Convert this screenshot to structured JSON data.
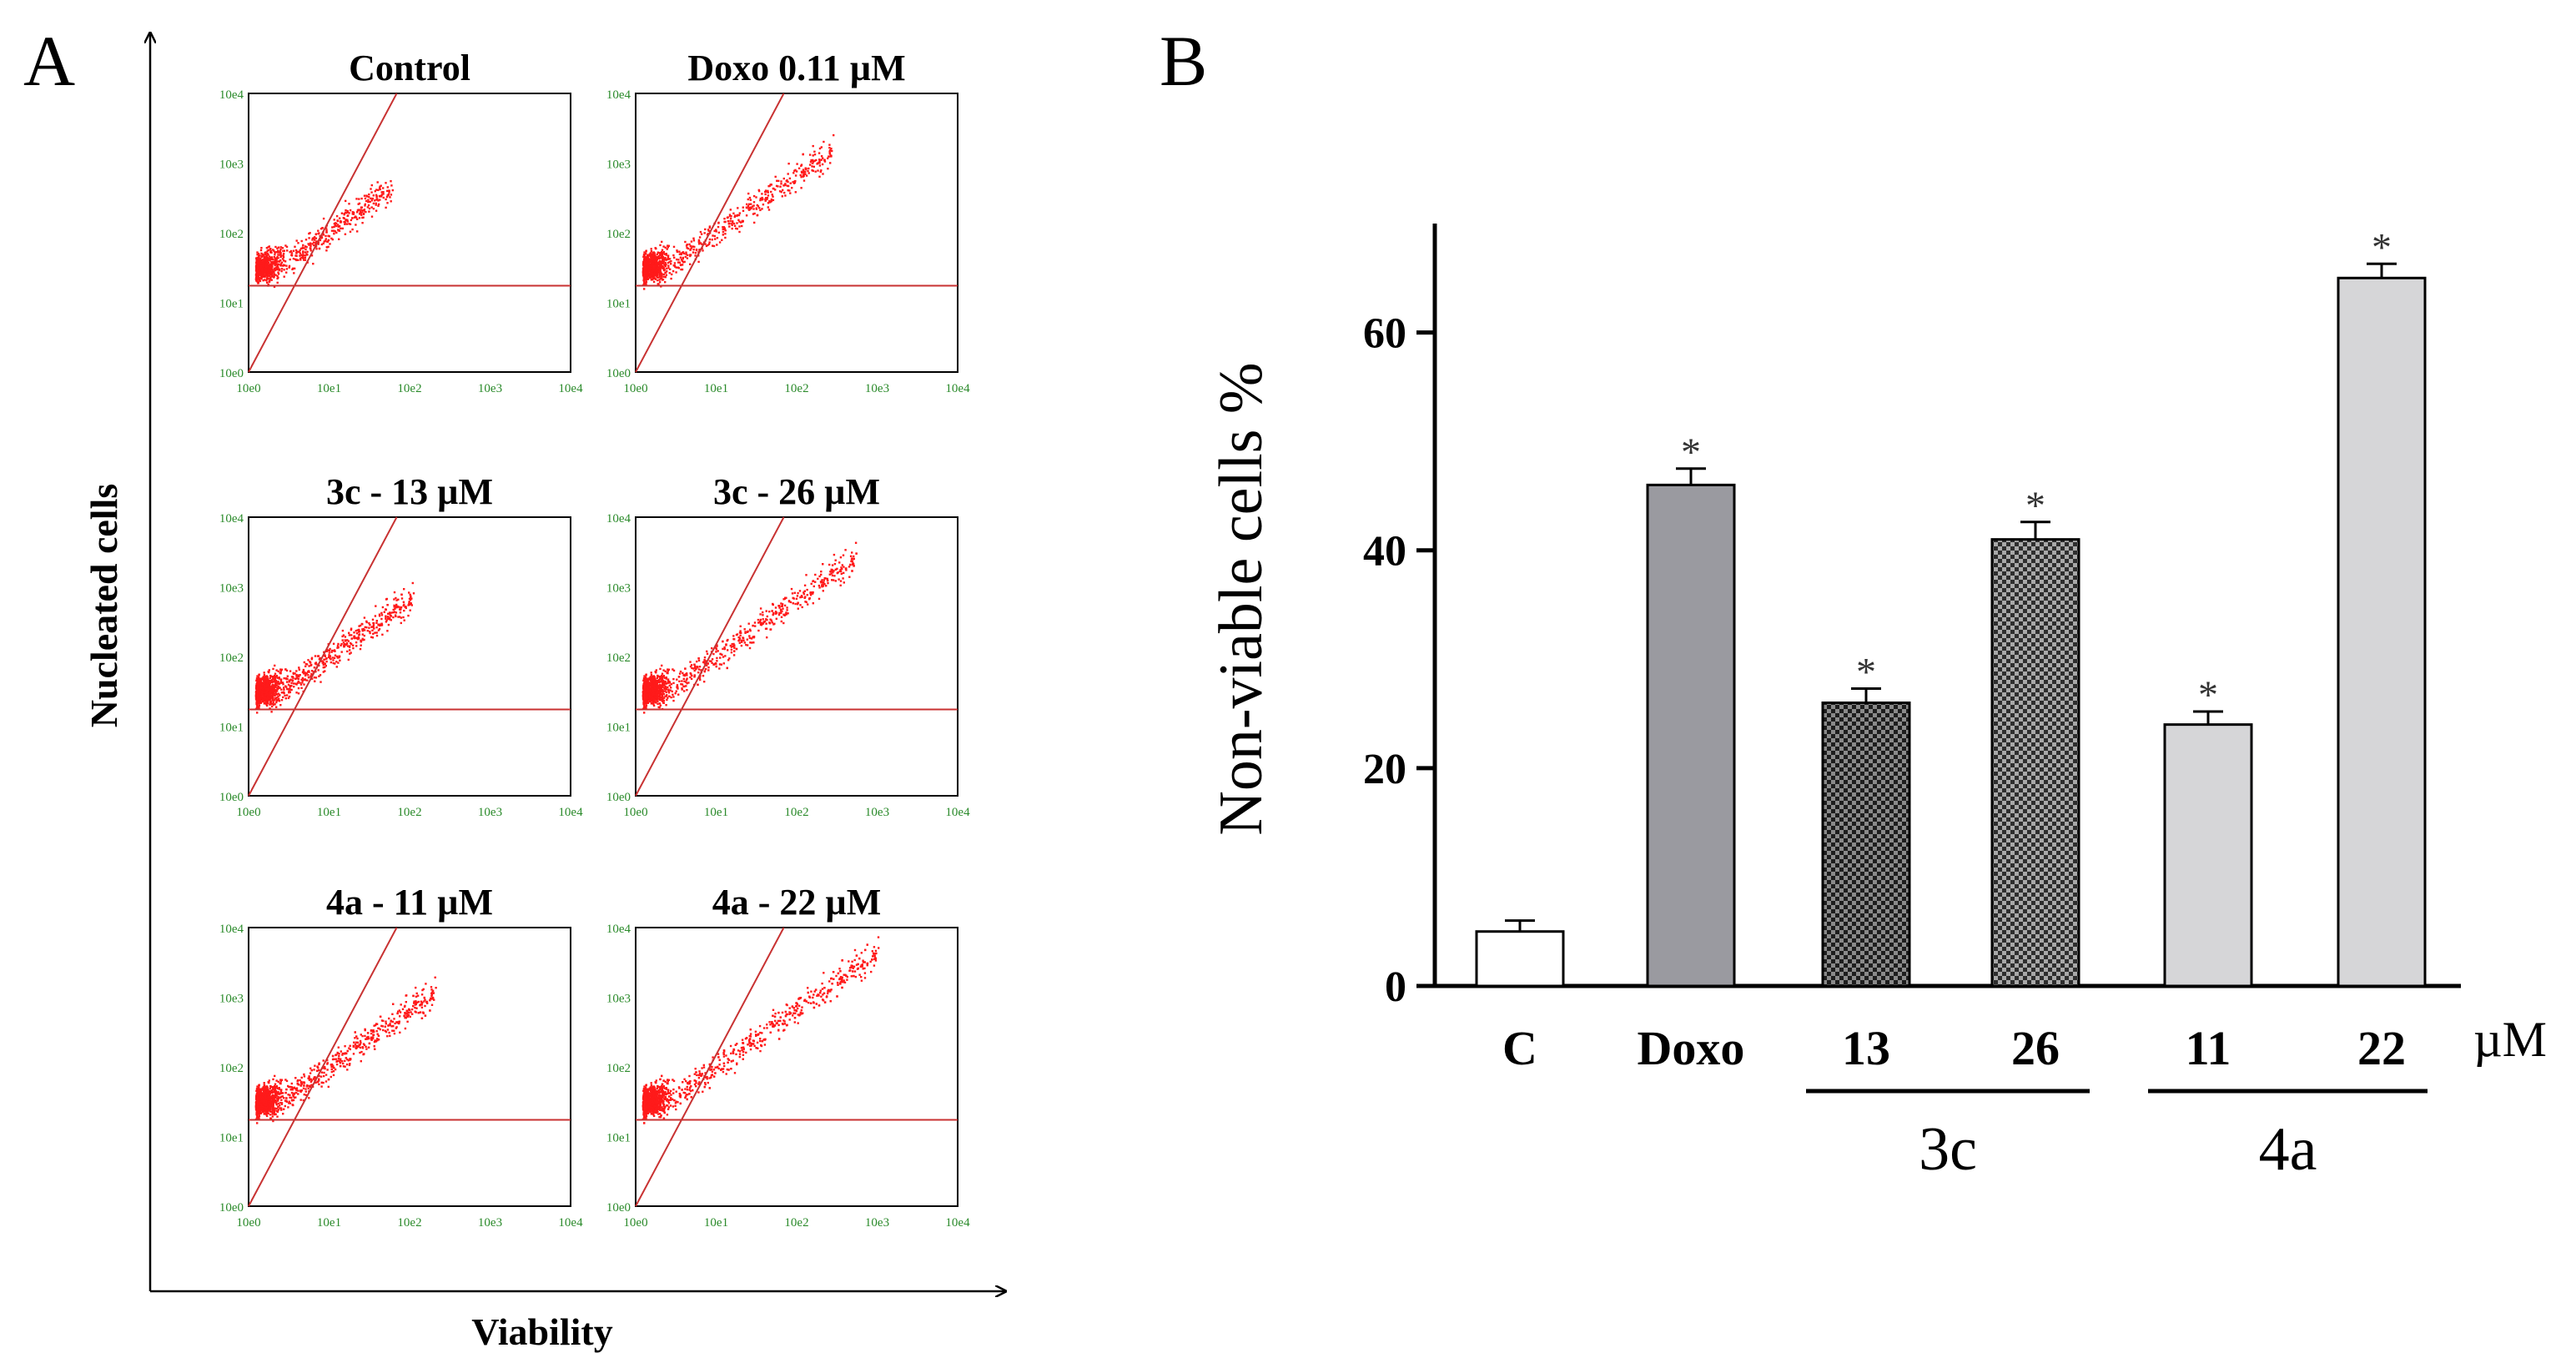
{
  "panel_a": {
    "label": "A",
    "y_axis_label": "Nucleated cells",
    "x_axis_label": "Viability",
    "log_ticks": [
      "10e0",
      "10e1",
      "10e2",
      "10e3",
      "10e4"
    ],
    "plots": [
      {
        "title": "Control"
      },
      {
        "title": "Doxo 0.11 µM"
      },
      {
        "title": "3c - 13 µM"
      },
      {
        "title": "3c - 26 µM"
      },
      {
        "title": "4a - 11 µM"
      },
      {
        "title": "4a - 22 µM"
      }
    ]
  },
  "panel_b": {
    "label": "B",
    "unit_label": "µM",
    "group_labels": [
      "3c",
      "4a"
    ]
  },
  "chart_data": {
    "type": "bar",
    "ylabel": "Non-viable cells %",
    "xlabel": "",
    "ylim": [
      0,
      70
    ],
    "yticks": [
      0,
      20,
      40,
      60
    ],
    "categories": [
      "C",
      "Doxo",
      "13",
      "26",
      "11",
      "22"
    ],
    "values": [
      5,
      46,
      26,
      41,
      24,
      65
    ],
    "errors": [
      1,
      1.5,
      1.3,
      1.6,
      1.2,
      1.3
    ],
    "significance": [
      "",
      "*",
      "*",
      "*",
      "*",
      "*"
    ],
    "groups": [
      {
        "name": "3c",
        "categories": [
          "13",
          "26"
        ]
      },
      {
        "name": "4a",
        "categories": [
          "11",
          "22"
        ]
      }
    ],
    "fills": [
      "#ffffff",
      "#9a9aa0",
      "#3a3a3a",
      "#555555",
      "#d6d6d8",
      "#d6d6d8"
    ],
    "patterns": [
      "none",
      "none",
      "checker",
      "checker",
      "none",
      "none"
    ]
  },
  "colors": {
    "scatter_points": "#ff1a1a",
    "gate_lines": "#c83232",
    "tick_green": "#2a8a2a",
    "axis": "#000000"
  }
}
